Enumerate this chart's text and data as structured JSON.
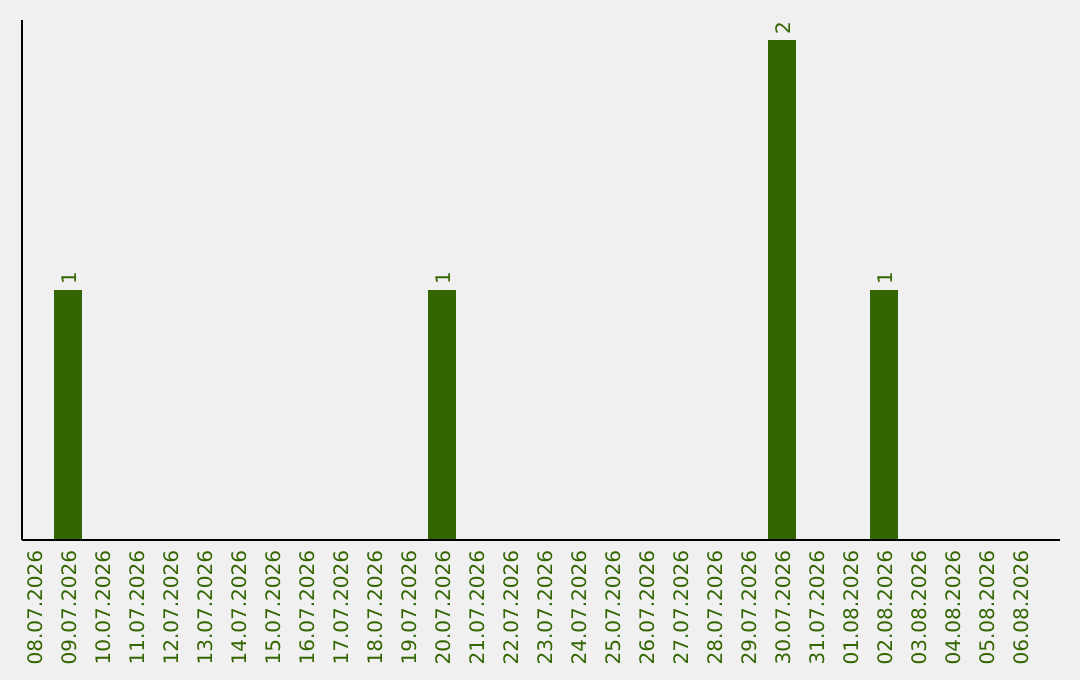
{
  "chart_data": {
    "type": "bar",
    "categories": [
      "08.07.2026",
      "09.07.2026",
      "10.07.2026",
      "11.07.2026",
      "12.07.2026",
      "13.07.2026",
      "14.07.2026",
      "15.07.2026",
      "16.07.2026",
      "17.07.2026",
      "18.07.2026",
      "19.07.2026",
      "20.07.2026",
      "21.07.2026",
      "22.07.2026",
      "23.07.2026",
      "24.07.2026",
      "25.07.2026",
      "26.07.2026",
      "27.07.2026",
      "28.07.2026",
      "29.07.2026",
      "30.07.2026",
      "31.07.2026",
      "01.08.2026",
      "02.08.2026",
      "03.08.2026",
      "04.08.2026",
      "05.08.2026",
      "06.08.2026"
    ],
    "values": [
      0,
      1,
      0,
      0,
      0,
      0,
      0,
      0,
      0,
      0,
      0,
      0,
      1,
      0,
      0,
      0,
      0,
      0,
      0,
      0,
      0,
      0,
      2,
      0,
      0,
      1,
      0,
      0,
      0,
      0
    ],
    "value_labels": [
      null,
      "1",
      null,
      null,
      null,
      null,
      null,
      null,
      null,
      null,
      null,
      null,
      "1",
      null,
      null,
      null,
      null,
      null,
      null,
      null,
      null,
      null,
      "2",
      null,
      null,
      "1",
      null,
      null,
      null,
      null
    ],
    "color": "#336600"
  }
}
